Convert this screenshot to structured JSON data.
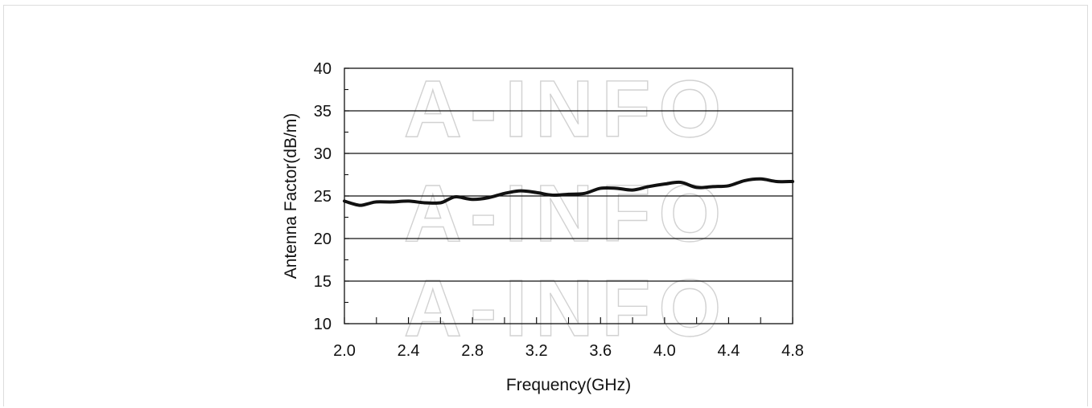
{
  "chart_data": {
    "type": "line",
    "xlabel": "Frequency(GHz)",
    "ylabel": "Antenna Factor(dB/m)",
    "xlim": [
      2.0,
      4.8
    ],
    "ylim": [
      10,
      40
    ],
    "xticks": [
      "2.0",
      "2.4",
      "2.8",
      "3.2",
      "3.6",
      "4.0",
      "4.4",
      "4.8"
    ],
    "yticks": [
      "10",
      "15",
      "20",
      "25",
      "30",
      "35",
      "40"
    ],
    "grid": "horizontal",
    "watermark": "A-INFO",
    "series": [
      {
        "color": "#111111",
        "x": [
          2.0,
          2.05,
          2.1,
          2.15,
          2.2,
          2.3,
          2.4,
          2.5,
          2.6,
          2.65,
          2.7,
          2.8,
          2.9,
          3.0,
          3.1,
          3.2,
          3.3,
          3.4,
          3.5,
          3.6,
          3.7,
          3.8,
          3.9,
          4.0,
          4.1,
          4.2,
          4.3,
          4.4,
          4.5,
          4.6,
          4.7,
          4.8
        ],
        "y": [
          24.4,
          24.1,
          23.9,
          24.1,
          24.3,
          24.3,
          24.4,
          24.2,
          24.2,
          24.6,
          24.9,
          24.6,
          24.8,
          25.3,
          25.6,
          25.4,
          25.1,
          25.2,
          25.3,
          25.9,
          25.9,
          25.7,
          26.1,
          26.4,
          26.6,
          26.0,
          26.1,
          26.2,
          26.8,
          27.0,
          26.7,
          26.7
        ]
      }
    ]
  }
}
